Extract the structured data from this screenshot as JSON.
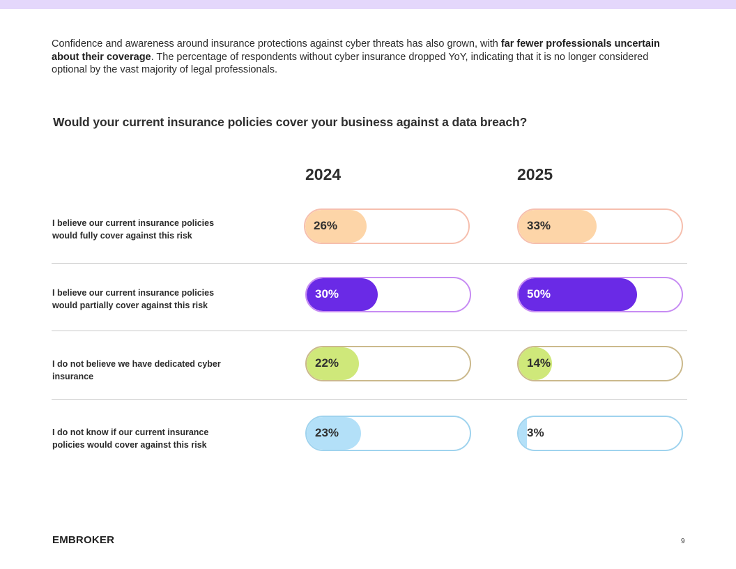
{
  "intro": {
    "part1": "Confidence and awareness around insurance protections against cyber threats has also grown, with ",
    "bold": "far fewer professionals uncertain about their coverage",
    "part2": ". The percentage of respondents without cyber insurance dropped YoY, indicating that it is no longer considered optional by the vast majority of legal professionals."
  },
  "chart_data": {
    "type": "bar",
    "title": "Would your current insurance policies cover your business against a data breach?",
    "categories": [
      "I believe our current insurance policies would fully cover against this risk",
      "I believe our current insurance policies would partially cover against this risk",
      "I do not believe we have dedicated cyber insurance",
      "I do not know if our current insurance policies would cover against this risk"
    ],
    "series": [
      {
        "name": "2024",
        "values": [
          26,
          30,
          22,
          23
        ],
        "labels": [
          "26%",
          "30%",
          "22%",
          "23%"
        ]
      },
      {
        "name": "2025",
        "values": [
          33,
          50,
          14,
          3
        ],
        "labels": [
          "33%",
          "50%",
          "14%",
          "3%"
        ]
      }
    ],
    "ylim": [
      0,
      100
    ],
    "colors": {
      "full": "#fdd5a8",
      "partial": "#6a2ae6",
      "none": "#cfe87a",
      "unknown": "#b3e0f8"
    }
  },
  "footer": {
    "logo": "EMBROKER",
    "page_number": "9"
  }
}
